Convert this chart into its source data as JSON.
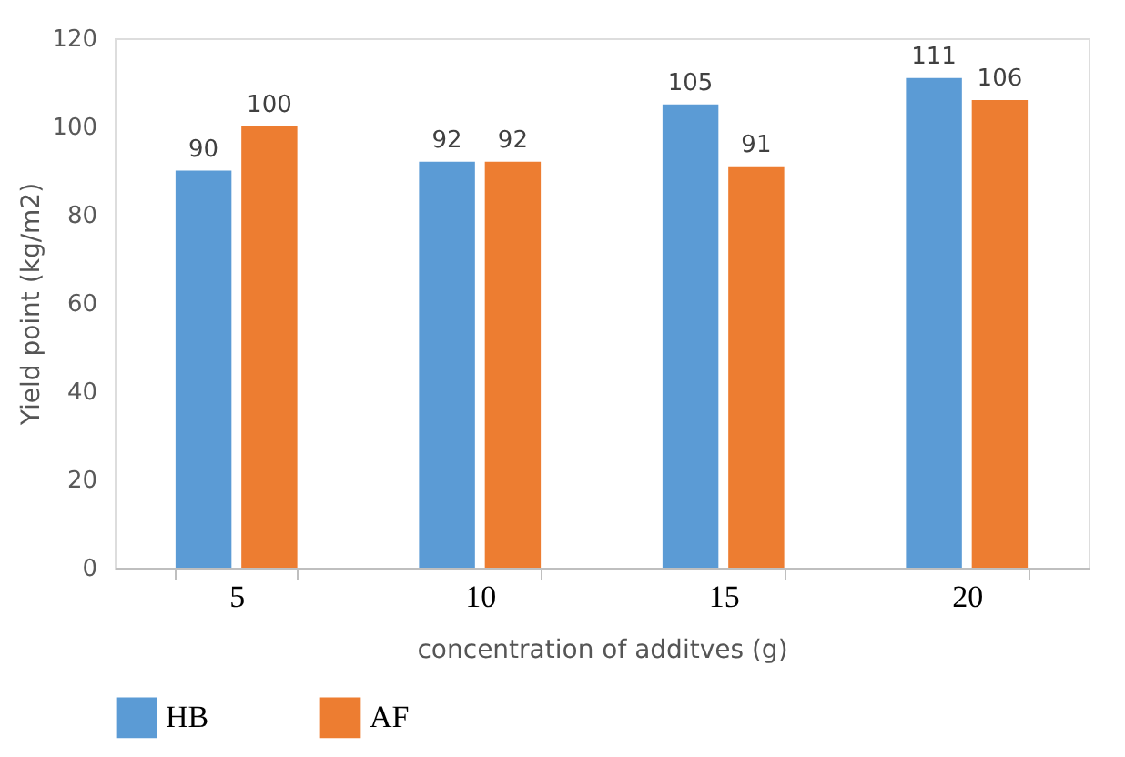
{
  "chart_data": {
    "type": "bar",
    "xlabel": "concentration of additves (g)",
    "ylabel": "Yield point (kg/m2)",
    "categories": [
      "5",
      "10",
      "15",
      "20"
    ],
    "series": [
      {
        "name": "HB",
        "color": "#5b9bd5",
        "values": [
          90,
          92,
          105,
          111
        ]
      },
      {
        "name": "AF",
        "color": "#ed7d31",
        "values": [
          100,
          92,
          91,
          106
        ]
      }
    ],
    "ylim": [
      0,
      120
    ],
    "yticks": [
      0,
      20,
      40,
      60,
      80,
      100,
      120
    ],
    "grid": false,
    "legend": "bottom",
    "data_labels": true
  }
}
